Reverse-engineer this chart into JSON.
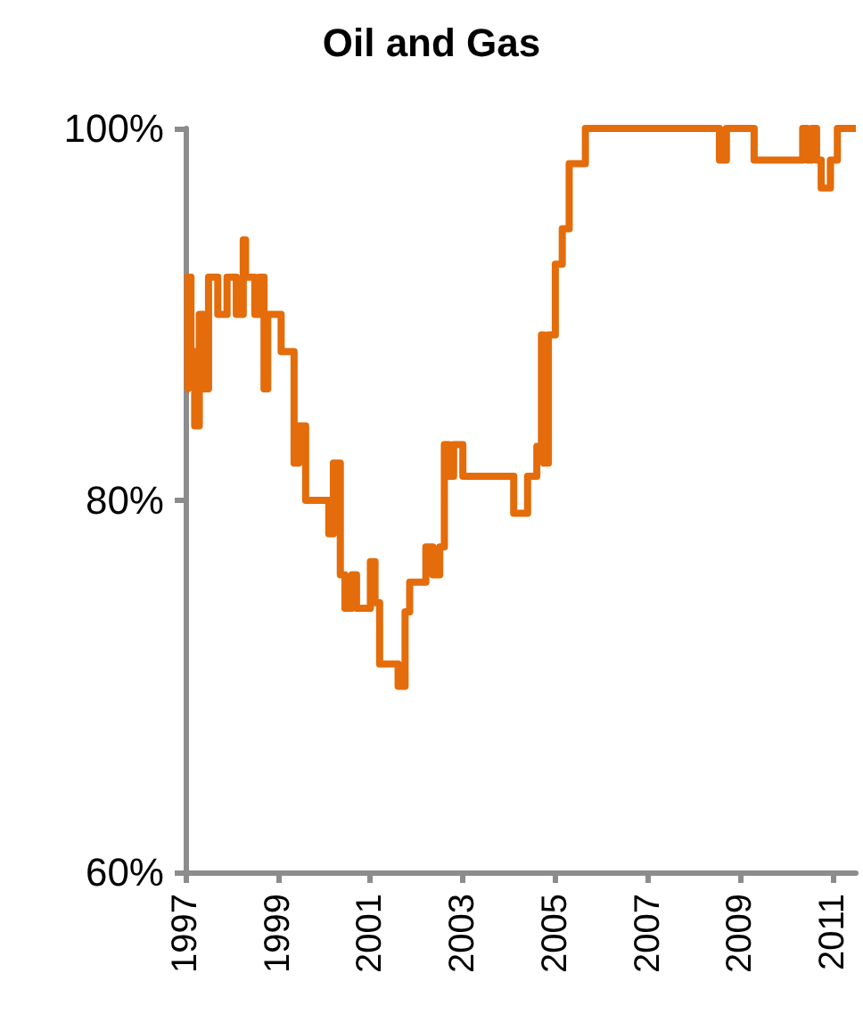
{
  "chart_data": {
    "type": "step",
    "title": "Oil and Gas",
    "color": "#e46c0a",
    "marker": "none",
    "grid": false,
    "x": [
      1997.0,
      1997.05,
      1997.12,
      1997.2,
      1997.3,
      1997.4,
      1997.5,
      1997.7,
      1997.9,
      1998.1,
      1998.25,
      1998.3,
      1998.5,
      1998.6,
      1998.7,
      1998.78,
      1999.07,
      1999.35,
      1999.45,
      1999.6,
      2000.1,
      2000.2,
      2000.35,
      2000.45,
      2000.6,
      2000.7,
      2001.0,
      2001.1,
      2001.2,
      2001.6,
      2001.75,
      2001.85,
      2002.2,
      2002.35,
      2002.5,
      2002.6,
      2002.7,
      2002.8,
      2003.0,
      2004.1,
      2004.4,
      2004.6,
      2004.7,
      2004.75,
      2004.85,
      2005.0,
      2005.15,
      2005.3,
      2005.65,
      2008.55,
      2008.7,
      2009.3,
      2010.35,
      2010.45,
      2010.55,
      2010.65,
      2010.75,
      2010.95,
      2011.1,
      2011.5
    ],
    "values": [
      86,
      92,
      88,
      84,
      90,
      86,
      92,
      90,
      92,
      90,
      94,
      92,
      90,
      92,
      86,
      90,
      88,
      82,
      84,
      80,
      78.2,
      82,
      76,
      74.2,
      76,
      74.2,
      76.7,
      74.5,
      71.2,
      70,
      74,
      75.6,
      77.5,
      76,
      77.5,
      83,
      81.3,
      83,
      81.3,
      79.3,
      81.3,
      82.9,
      88.9,
      82,
      88.9,
      92.7,
      94.6,
      98.1,
      100,
      98.3,
      100,
      98.3,
      100,
      98.3,
      100,
      98.3,
      96.8,
      98.3,
      100,
      100
    ],
    "xlim": [
      1997,
      2011.5
    ],
    "xticks": [
      1997,
      1999,
      2001,
      2003,
      2005,
      2007,
      2009,
      2011
    ],
    "ylim": [
      60,
      100
    ],
    "yticks": [
      {
        "value": 60,
        "label": "60%"
      },
      {
        "value": 80,
        "label": "80%"
      },
      {
        "value": 100,
        "label": "100%"
      }
    ]
  }
}
